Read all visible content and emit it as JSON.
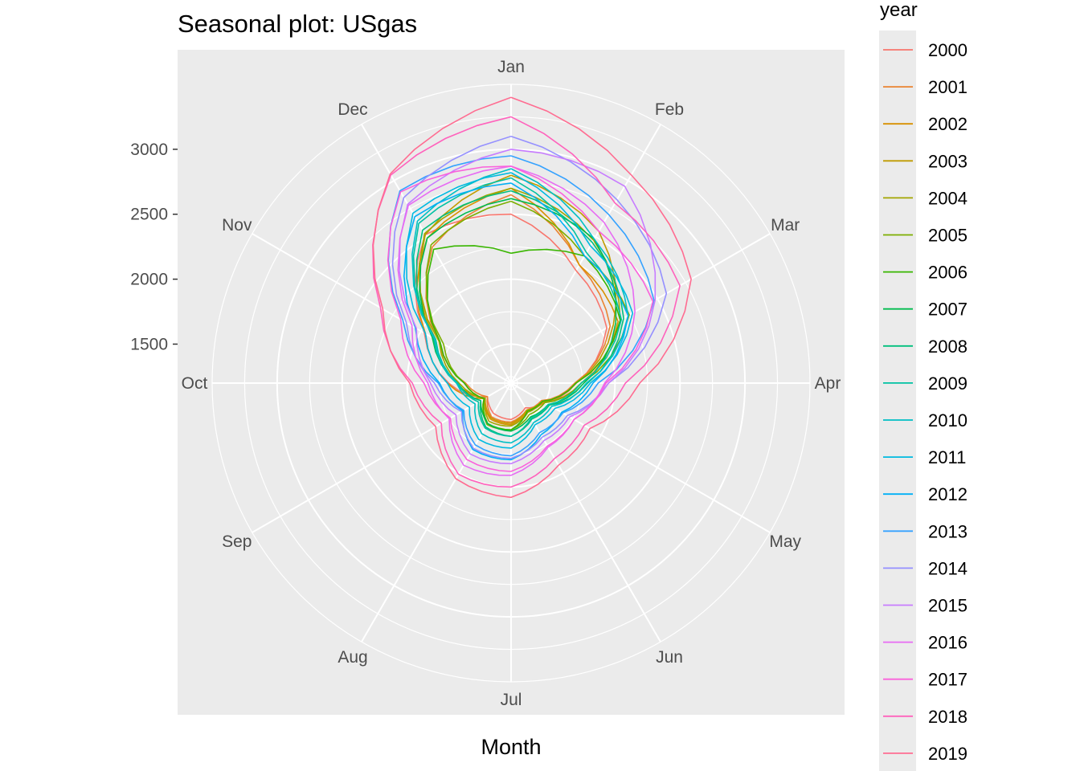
{
  "chart_data": {
    "type": "line",
    "coord": "polar",
    "title": "Seasonal plot: USgas",
    "xlabel": "Month",
    "ylabel": "",
    "categories": [
      "Jan",
      "Feb",
      "Mar",
      "Apr",
      "May",
      "Jun",
      "Jul",
      "Aug",
      "Sep",
      "Oct",
      "Nov",
      "Dec"
    ],
    "r_ticks": [
      1500,
      2000,
      2500,
      3000
    ],
    "rlim": [
      1200,
      3500
    ],
    "grid": true,
    "legend": {
      "title": "year",
      "position": "right"
    },
    "series": [
      {
        "name": "2000",
        "color": "#F8766D",
        "values": [
          2500,
          2200,
          2050,
          1700,
          1500,
          1420,
          1480,
          1470,
          1410,
          1680,
          1970,
          2520
        ]
      },
      {
        "name": "2001",
        "color": "#EA8331",
        "values": [
          2650,
          2250,
          2080,
          1690,
          1470,
          1440,
          1500,
          1500,
          1410,
          1550,
          1840,
          2410
        ]
      },
      {
        "name": "2002",
        "color": "#D89000",
        "values": [
          2700,
          2250,
          2150,
          1740,
          1490,
          1450,
          1520,
          1520,
          1440,
          1690,
          1960,
          2490
        ]
      },
      {
        "name": "2003",
        "color": "#C09B00",
        "values": [
          2800,
          2550,
          2110,
          1700,
          1480,
          1440,
          1510,
          1510,
          1430,
          1620,
          1870,
          2520
        ]
      },
      {
        "name": "2004",
        "color": "#A3A500",
        "values": [
          2700,
          2470,
          2170,
          1700,
          1480,
          1460,
          1530,
          1540,
          1430,
          1600,
          1840,
          2530
        ]
      },
      {
        "name": "2005",
        "color": "#7CAE00",
        "values": [
          2600,
          2330,
          2250,
          1740,
          1500,
          1480,
          1560,
          1570,
          1440,
          1560,
          1800,
          2430
        ]
      },
      {
        "name": "2006",
        "color": "#39B600",
        "values": [
          2200,
          2330,
          2170,
          1700,
          1480,
          1450,
          1560,
          1560,
          1440,
          1560,
          1830,
          2390
        ]
      },
      {
        "name": "2007",
        "color": "#00BB4E",
        "values": [
          2620,
          2480,
          2130,
          1760,
          1530,
          1500,
          1570,
          1560,
          1470,
          1610,
          1900,
          2490
        ]
      },
      {
        "name": "2008",
        "color": "#00BF7D",
        "values": [
          2680,
          2450,
          2200,
          1790,
          1540,
          1520,
          1610,
          1590,
          1470,
          1620,
          1890,
          2560
        ]
      },
      {
        "name": "2009",
        "color": "#00C1A3",
        "values": [
          2780,
          2360,
          2180,
          1740,
          1530,
          1510,
          1610,
          1600,
          1490,
          1610,
          1870,
          2620
        ]
      },
      {
        "name": "2010",
        "color": "#00BFC4",
        "values": [
          2850,
          2480,
          2240,
          1780,
          1560,
          1550,
          1660,
          1650,
          1520,
          1620,
          1880,
          2640
        ]
      },
      {
        "name": "2011",
        "color": "#00BAE0",
        "values": [
          2820,
          2420,
          2280,
          1810,
          1590,
          1570,
          1700,
          1700,
          1570,
          1690,
          1960,
          2710
        ]
      },
      {
        "name": "2012",
        "color": "#00B0F6",
        "values": [
          2740,
          2330,
          2240,
          1830,
          1650,
          1660,
          1790,
          1790,
          1630,
          1750,
          2050,
          2680
        ]
      },
      {
        "name": "2013",
        "color": "#35A2FF",
        "values": [
          2950,
          2700,
          2470,
          1870,
          1660,
          1640,
          1760,
          1750,
          1620,
          1760,
          2160,
          2910
        ]
      },
      {
        "name": "2014",
        "color": "#9590FF",
        "values": [
          3100,
          2830,
          2580,
          1950,
          1700,
          1680,
          1780,
          1780,
          1640,
          1790,
          2130,
          2850
        ]
      },
      {
        "name": "2015",
        "color": "#C77CFF",
        "values": [
          3000,
          2950,
          2480,
          1950,
          1720,
          1710,
          1820,
          1830,
          1690,
          1820,
          2040,
          2790
        ]
      },
      {
        "name": "2016",
        "color": "#E76BF3",
        "values": [
          2870,
          2630,
          2300,
          1920,
          1760,
          1770,
          1910,
          1930,
          1750,
          1840,
          2080,
          2780
        ]
      },
      {
        "name": "2017",
        "color": "#FA62DB",
        "values": [
          2870,
          2550,
          2460,
          1930,
          1760,
          1760,
          1880,
          1880,
          1740,
          1870,
          2180,
          2900
        ]
      },
      {
        "name": "2018",
        "color": "#FF62BC",
        "values": [
          3250,
          2800,
          2700,
          2080,
          1850,
          1870,
          2000,
          2010,
          1820,
          1960,
          2360,
          3050
        ]
      },
      {
        "name": "2019",
        "color": "#FF6C91",
        "values": [
          3400,
          3050,
          2800,
          2190,
          1900,
          1930,
          2080,
          2050,
          1870,
          1980,
          2340,
          3060
        ]
      }
    ]
  }
}
